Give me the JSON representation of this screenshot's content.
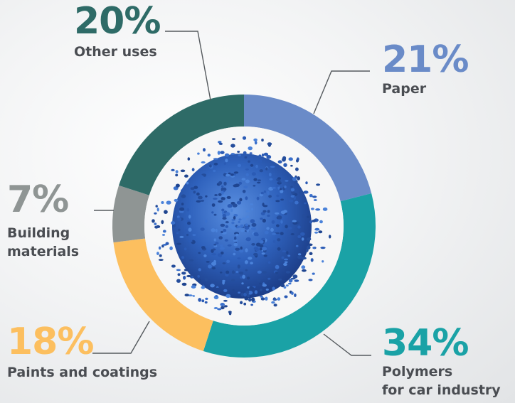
{
  "chart_data": {
    "type": "pie",
    "variant": "donut",
    "title": "",
    "slices": [
      {
        "label": "Paper",
        "value": 21,
        "value_label": "21%",
        "color": "#6a8bc8"
      },
      {
        "label": "Polymers for car industry",
        "label_lines": [
          "Polymers",
          "for car industry"
        ],
        "value": 34,
        "value_label": "34%",
        "color": "#1aa2a6"
      },
      {
        "label": "Paints and coatings",
        "value": 18,
        "value_label": "18%",
        "color": "#fcbf5f"
      },
      {
        "label": "Building materials",
        "label_lines": [
          "Building",
          "materials"
        ],
        "value": 7,
        "value_label": "7%",
        "color": "#8f9594"
      },
      {
        "label": "Other uses",
        "value": 20,
        "value_label": "20%",
        "color": "#2e6b67"
      }
    ],
    "center_image": "blue-plastic-granules"
  }
}
